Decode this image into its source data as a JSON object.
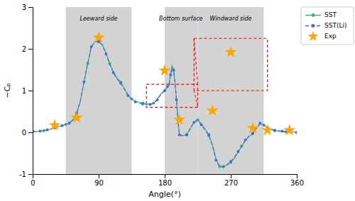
{
  "chart_data": {
    "type": "line",
    "xlabel": "Angle(°)",
    "ylabel": "−Cₚ",
    "xlim": [
      0,
      360
    ],
    "ylim": [
      -1,
      3
    ],
    "xticks": [
      0,
      90,
      180,
      270,
      360
    ],
    "yticks": [
      -1,
      0,
      1,
      2,
      3
    ],
    "grid": false,
    "legend": "upper right",
    "regions": [
      {
        "xmin": 45,
        "xmax": 135,
        "label": "Leeward side",
        "label_x": 90,
        "label_y": 2.78,
        "color": "#d3d3d3"
      },
      {
        "xmin": 180,
        "xmax": 225,
        "label": "Bottom surface",
        "label_x": 202,
        "label_y": 2.78,
        "color": "#d3d3d3"
      },
      {
        "xmin": 225,
        "xmax": 315,
        "label": "Windward side",
        "label_x": 270,
        "label_y": 2.78,
        "color": "#d3d3d3"
      }
    ],
    "zoom_boxes": [
      {
        "x": 155,
        "y": 0.6,
        "width": 70,
        "height": 0.55,
        "color": "red"
      },
      {
        "x": 220,
        "y": 1.0,
        "width": 100,
        "height": 1.25,
        "color": "red"
      }
    ],
    "series": [
      {
        "name": "SST",
        "type": "line",
        "color": "#3cb371",
        "marker": "circle",
        "line_style": "solid",
        "x": [
          0,
          5,
          10,
          15,
          20,
          25,
          30,
          35,
          40,
          45,
          50,
          55,
          60,
          65,
          70,
          75,
          80,
          85,
          90,
          95,
          100,
          105,
          110,
          115,
          120,
          125,
          130,
          135,
          140,
          145,
          150,
          155,
          160,
          165,
          170,
          175,
          180,
          182,
          184,
          186,
          188,
          190,
          192,
          194,
          196,
          198,
          200,
          205,
          210,
          215,
          220,
          225,
          230,
          235,
          240,
          245,
          250,
          255,
          260,
          265,
          270,
          275,
          280,
          285,
          290,
          295,
          300,
          305,
          310,
          315,
          320,
          325,
          330,
          335,
          340,
          345,
          350,
          355,
          360
        ],
        "values": [
          0.02,
          0.02,
          0.03,
          0.04,
          0.06,
          0.08,
          0.11,
          0.14,
          0.16,
          0.19,
          0.22,
          0.3,
          0.45,
          0.75,
          1.2,
          1.65,
          2.05,
          2.18,
          2.18,
          2.1,
          1.9,
          1.65,
          1.45,
          1.3,
          1.2,
          1.05,
          0.9,
          0.8,
          0.75,
          0.72,
          0.7,
          0.68,
          0.68,
          0.7,
          0.8,
          0.92,
          1.0,
          1.05,
          1.1,
          1.15,
          1.4,
          1.6,
          1.5,
          1.2,
          0.8,
          0.3,
          -0.05,
          -0.08,
          -0.05,
          0.1,
          0.25,
          0.3,
          0.2,
          0.08,
          -0.05,
          -0.3,
          -0.65,
          -0.82,
          -0.82,
          -0.78,
          -0.72,
          -0.62,
          -0.48,
          -0.33,
          -0.2,
          -0.1,
          -0.03,
          0.1,
          0.2,
          0.17,
          0.1,
          0.06,
          0.04,
          0.03,
          0.02,
          0.01,
          0.01,
          0.01,
          0.0
        ]
      },
      {
        "name": "SST(Li)",
        "type": "line",
        "color": "#4169e1",
        "marker": "point",
        "line_style": "dashed",
        "x": [
          0,
          5,
          10,
          15,
          20,
          25,
          30,
          35,
          40,
          45,
          50,
          55,
          60,
          65,
          70,
          75,
          80,
          85,
          90,
          95,
          100,
          105,
          110,
          115,
          120,
          125,
          130,
          135,
          140,
          145,
          150,
          155,
          160,
          165,
          170,
          175,
          180,
          182,
          184,
          186,
          188,
          190,
          192,
          194,
          196,
          198,
          200,
          205,
          210,
          215,
          220,
          225,
          230,
          235,
          240,
          245,
          250,
          255,
          260,
          265,
          270,
          275,
          280,
          285,
          290,
          295,
          300,
          305,
          310,
          315,
          320,
          325,
          330,
          335,
          340,
          345,
          350,
          355,
          360
        ],
        "values": [
          0.02,
          0.02,
          0.03,
          0.04,
          0.06,
          0.08,
          0.11,
          0.14,
          0.16,
          0.19,
          0.22,
          0.3,
          0.46,
          0.76,
          1.21,
          1.65,
          2.05,
          2.17,
          2.17,
          2.09,
          1.88,
          1.63,
          1.43,
          1.28,
          1.18,
          1.03,
          0.88,
          0.78,
          0.73,
          0.7,
          0.68,
          0.66,
          0.67,
          0.69,
          0.78,
          0.92,
          1.0,
          1.05,
          1.1,
          1.15,
          1.38,
          1.55,
          1.48,
          1.18,
          0.78,
          0.28,
          -0.06,
          -0.09,
          -0.06,
          0.09,
          0.24,
          0.28,
          0.18,
          0.06,
          -0.07,
          -0.32,
          -0.67,
          -0.83,
          -0.82,
          -0.77,
          -0.7,
          -0.6,
          -0.46,
          -0.31,
          -0.18,
          -0.09,
          -0.02,
          0.11,
          0.22,
          0.19,
          0.12,
          0.07,
          0.05,
          0.04,
          0.03,
          0.02,
          0.02,
          0.01,
          0.0
        ]
      },
      {
        "name": "Exp",
        "type": "scatter",
        "color": "#ffa500",
        "marker": "star",
        "x": [
          30,
          60,
          90,
          180,
          200,
          245,
          270,
          300,
          320,
          350
        ],
        "values": [
          0.17,
          0.35,
          2.27,
          1.48,
          0.3,
          0.52,
          1.92,
          0.1,
          0.05,
          0.05
        ]
      }
    ]
  }
}
